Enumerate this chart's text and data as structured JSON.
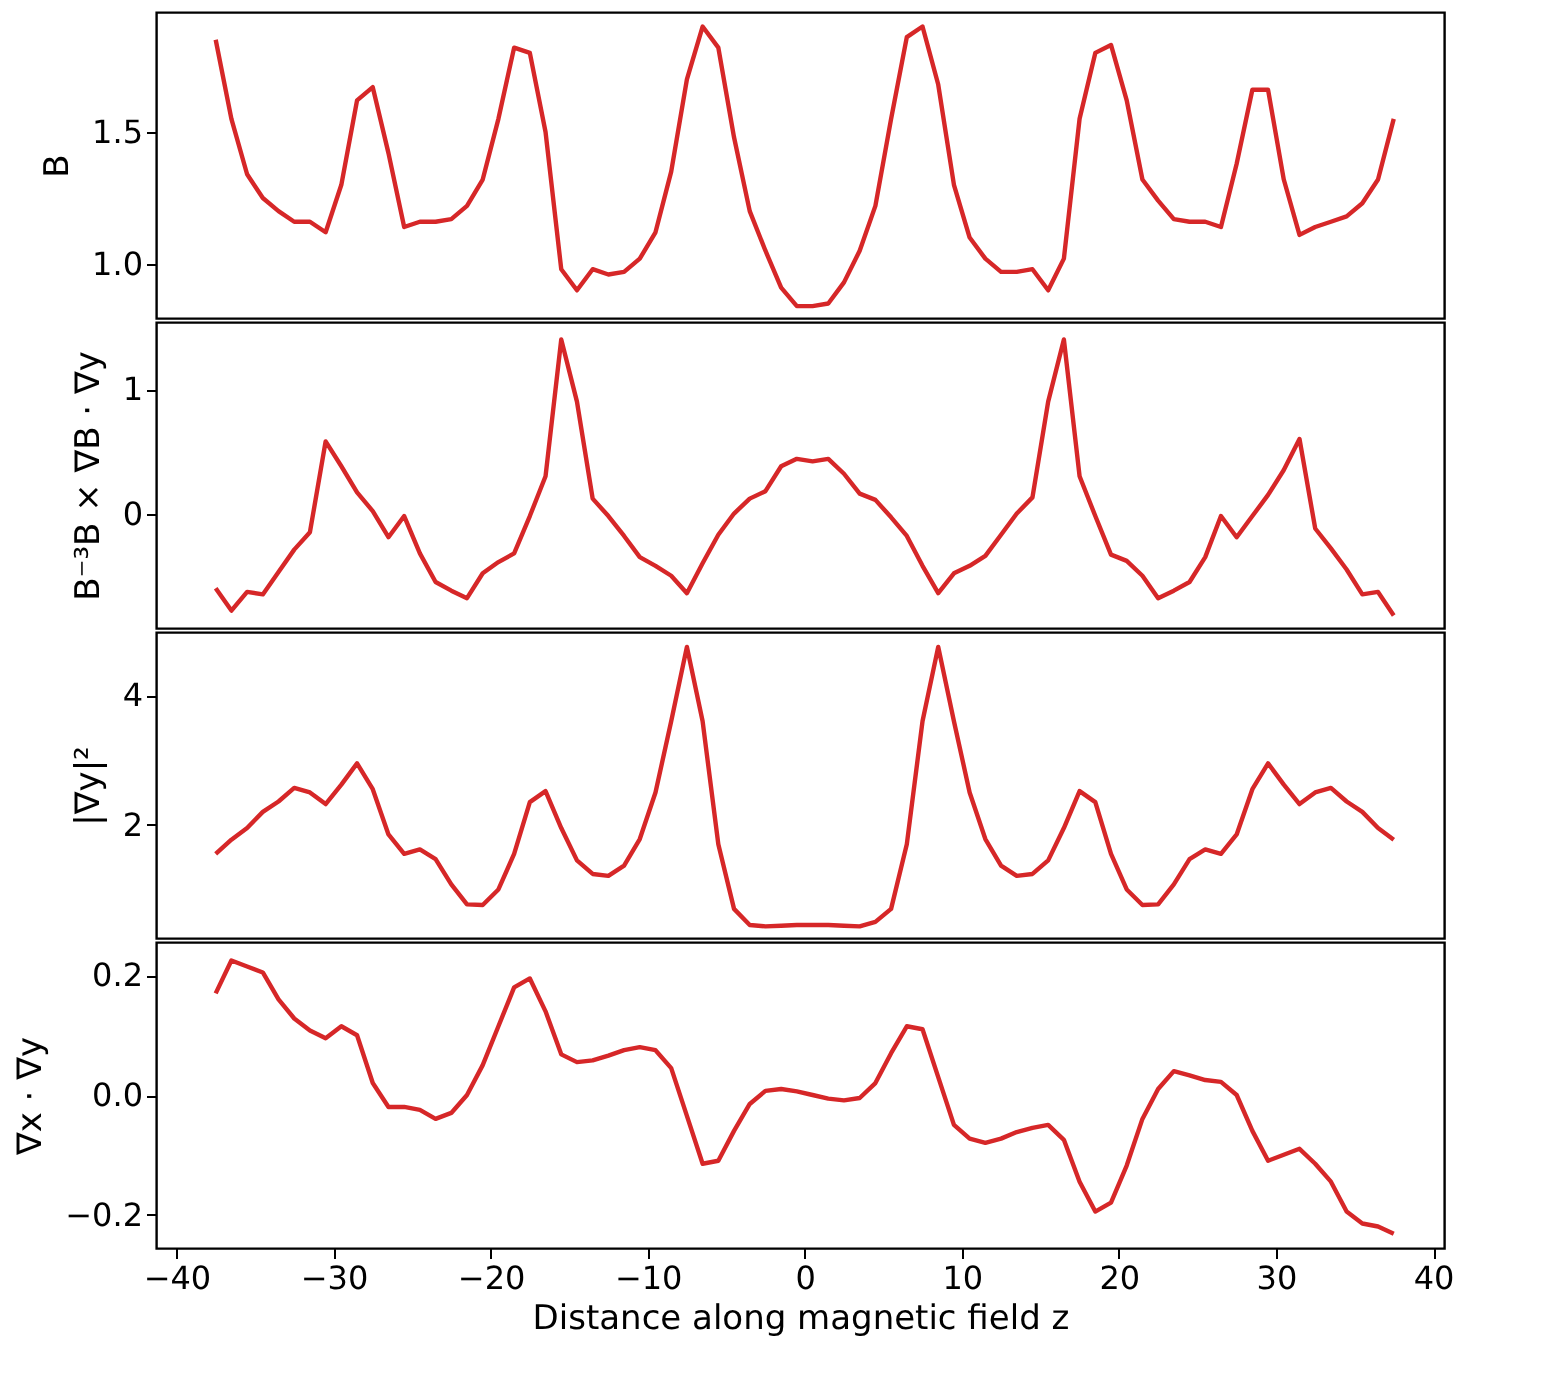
{
  "chart_data": [
    {
      "type": "line",
      "ylabel": "B",
      "tick_labels": "y",
      "x": [
        -37.5,
        -36.5,
        -35.5,
        -34.5,
        -33.5,
        -32.5,
        -31.5,
        -30.5,
        -29.5,
        -28.5,
        -27.5,
        -26.5,
        -25.5,
        -24.5,
        -23.5,
        -22.5,
        -21.5,
        -20.5,
        -19.5,
        -18.5,
        -17.5,
        -16.5,
        -15.5,
        -14.5,
        -13.5,
        -12.5,
        -11.5,
        -10.5,
        -9.5,
        -8.5,
        -7.5,
        -6.5,
        -5.5,
        -4.5,
        -3.5,
        -2.5,
        -1.5,
        -0.5,
        0.5,
        1.5,
        2.5,
        3.5,
        4.5,
        5.5,
        6.5,
        7.5,
        8.5,
        9.5,
        10.5,
        11.5,
        12.5,
        13.5,
        14.5,
        15.5,
        16.5,
        17.5,
        18.5,
        19.5,
        20.5,
        21.5,
        22.5,
        23.5,
        24.5,
        25.5,
        26.5,
        27.5,
        28.5,
        29.5,
        30.5,
        31.5,
        32.5,
        33.5,
        34.5,
        35.5,
        36.5,
        37.5
      ],
      "series": [
        {
          "color": "#d62728",
          "values": [
            1.85,
            1.55,
            1.34,
            1.25,
            1.2,
            1.16,
            1.16,
            1.12,
            1.3,
            1.62,
            1.67,
            1.42,
            1.14,
            1.16,
            1.16,
            1.17,
            1.22,
            1.32,
            1.55,
            1.82,
            1.8,
            1.5,
            0.98,
            0.9,
            0.98,
            0.96,
            0.97,
            1.02,
            1.12,
            1.35,
            1.7,
            1.9,
            1.82,
            1.48,
            1.2,
            1.05,
            0.91,
            0.84,
            0.84,
            0.85,
            0.93,
            1.05,
            1.22,
            1.55,
            1.86,
            1.9,
            1.68,
            1.3,
            1.1,
            1.02,
            0.97,
            0.97,
            0.98,
            0.9,
            1.02,
            1.55,
            1.8,
            1.83,
            1.62,
            1.32,
            1.24,
            1.17,
            1.16,
            1.16,
            1.14,
            1.38,
            1.66,
            1.66,
            1.32,
            1.11,
            1.14,
            1.16,
            1.18,
            1.23,
            1.32,
            1.55
          ]
        }
      ],
      "xlim": [
        -41.3,
        40.7
      ],
      "ylim": [
        0.795,
        1.955
      ],
      "yticks": [
        {
          "value": 1,
          "label": "1.0"
        },
        1.5
      ]
    },
    {
      "type": "line",
      "ylabel": "B⁻³B × ∇B · ∇y",
      "tick_labels": "y",
      "x": [
        -37.5,
        -36.5,
        -35.5,
        -34.5,
        -33.5,
        -32.5,
        -31.5,
        -30.5,
        -29.5,
        -28.5,
        -27.5,
        -26.5,
        -25.5,
        -24.5,
        -23.5,
        -22.5,
        -21.5,
        -20.5,
        -19.5,
        -18.5,
        -17.5,
        -16.5,
        -15.5,
        -14.5,
        -13.5,
        -12.5,
        -11.5,
        -10.5,
        -9.5,
        -8.5,
        -7.5,
        -6.5,
        -5.5,
        -4.5,
        -3.5,
        -2.5,
        -1.5,
        -0.5,
        0.5,
        1.5,
        2.5,
        3.5,
        4.5,
        5.5,
        6.5,
        7.5,
        8.5,
        9.5,
        10.5,
        11.5,
        12.5,
        13.5,
        14.5,
        15.5,
        16.5,
        17.5,
        18.5,
        19.5,
        20.5,
        21.5,
        22.5,
        23.5,
        24.5,
        25.5,
        26.5,
        27.5,
        28.5,
        29.5,
        30.5,
        31.5,
        32.5,
        33.5,
        34.5,
        35.5,
        36.5,
        37.5
      ],
      "series": [
        {
          "color": "#d62728",
          "values": [
            -0.6,
            -0.78,
            -0.63,
            -0.65,
            -0.47,
            -0.29,
            -0.15,
            0.58,
            0.38,
            0.17,
            0.02,
            -0.19,
            -0.02,
            -0.32,
            -0.55,
            -0.62,
            -0.68,
            -0.48,
            -0.39,
            -0.32,
            -0.02,
            0.3,
            1.4,
            0.9,
            0.12,
            -0.02,
            -0.18,
            -0.35,
            -0.42,
            -0.5,
            -0.64,
            -0.4,
            -0.17,
            0.0,
            0.12,
            0.18,
            0.38,
            0.44,
            0.42,
            0.44,
            0.32,
            0.16,
            0.11,
            -0.03,
            -0.18,
            -0.42,
            -0.64,
            -0.48,
            -0.42,
            -0.34,
            -0.17,
            0.0,
            0.13,
            0.9,
            1.4,
            0.3,
            -0.02,
            -0.33,
            -0.38,
            -0.5,
            -0.68,
            -0.62,
            -0.55,
            -0.35,
            -0.02,
            -0.19,
            -0.02,
            0.15,
            0.35,
            0.6,
            -0.12,
            -0.28,
            -0.45,
            -0.65,
            -0.63,
            -0.82
          ]
        }
      ],
      "xlim": [
        -41.3,
        40.7
      ],
      "ylim": [
        -0.92,
        1.54
      ],
      "yticks": [
        0,
        1
      ]
    },
    {
      "type": "line",
      "ylabel": "|∇y|²",
      "tick_labels": "y",
      "x": [
        -37.5,
        -36.5,
        -35.5,
        -34.5,
        -33.5,
        -32.5,
        -31.5,
        -30.5,
        -29.5,
        -28.5,
        -27.5,
        -26.5,
        -25.5,
        -24.5,
        -23.5,
        -22.5,
        -21.5,
        -20.5,
        -19.5,
        -18.5,
        -17.5,
        -16.5,
        -15.5,
        -14.5,
        -13.5,
        -12.5,
        -11.5,
        -10.5,
        -9.5,
        -8.5,
        -7.5,
        -6.5,
        -5.5,
        -4.5,
        -3.5,
        -2.5,
        -1.5,
        -0.5,
        0.5,
        1.5,
        2.5,
        3.5,
        4.5,
        5.5,
        6.5,
        7.5,
        8.5,
        9.5,
        10.5,
        11.5,
        12.5,
        13.5,
        14.5,
        15.5,
        16.5,
        17.5,
        18.5,
        19.5,
        20.5,
        21.5,
        22.5,
        23.5,
        24.5,
        25.5,
        26.5,
        27.5,
        28.5,
        29.5,
        30.5,
        31.5,
        32.5,
        33.5,
        34.5,
        35.5,
        36.5,
        37.5
      ],
      "series": [
        {
          "color": "#d62728",
          "values": [
            1.55,
            1.77,
            1.95,
            2.2,
            2.36,
            2.57,
            2.5,
            2.32,
            2.62,
            2.95,
            2.55,
            1.85,
            1.55,
            1.62,
            1.47,
            1.08,
            0.77,
            0.76,
            1.0,
            1.55,
            2.35,
            2.52,
            1.95,
            1.45,
            1.24,
            1.21,
            1.37,
            1.78,
            2.5,
            3.6,
            4.75,
            3.6,
            1.7,
            0.7,
            0.45,
            0.43,
            0.44,
            0.45,
            0.45,
            0.45,
            0.44,
            0.43,
            0.5,
            0.7,
            1.7,
            3.6,
            4.75,
            3.6,
            2.5,
            1.78,
            1.37,
            1.21,
            1.24,
            1.45,
            1.95,
            2.52,
            2.35,
            1.55,
            1.0,
            0.76,
            0.77,
            1.08,
            1.47,
            1.62,
            1.55,
            1.85,
            2.55,
            2.95,
            2.62,
            2.32,
            2.5,
            2.57,
            2.36,
            2.2,
            1.95,
            1.77
          ]
        }
      ],
      "xlim": [
        -41.3,
        40.7
      ],
      "ylim": [
        0.25,
        4.98
      ],
      "yticks": [
        2,
        4
      ]
    },
    {
      "type": "line",
      "ylabel": "∇x · ∇y",
      "xlabel": "Distance along magnetic field z",
      "x": [
        -37.5,
        -36.5,
        -35.5,
        -34.5,
        -33.5,
        -32.5,
        -31.5,
        -30.5,
        -29.5,
        -28.5,
        -27.5,
        -26.5,
        -25.5,
        -24.5,
        -23.5,
        -22.5,
        -21.5,
        -20.5,
        -19.5,
        -18.5,
        -17.5,
        -16.5,
        -15.5,
        -14.5,
        -13.5,
        -12.5,
        -11.5,
        -10.5,
        -9.5,
        -8.5,
        -7.5,
        -6.5,
        -5.5,
        -4.5,
        -3.5,
        -2.5,
        -1.5,
        -0.5,
        0.5,
        1.5,
        2.5,
        3.5,
        4.5,
        5.5,
        6.5,
        7.5,
        8.5,
        9.5,
        10.5,
        11.5,
        12.5,
        13.5,
        14.5,
        15.5,
        16.5,
        17.5,
        18.5,
        19.5,
        20.5,
        21.5,
        22.5,
        23.5,
        24.5,
        25.5,
        26.5,
        27.5,
        28.5,
        29.5,
        30.5,
        31.5,
        32.5,
        33.5,
        34.5,
        35.5,
        36.5,
        37.5
      ],
      "series": [
        {
          "color": "#d62728",
          "values": [
            0.17,
            0.225,
            0.215,
            0.205,
            0.16,
            0.128,
            0.108,
            0.095,
            0.115,
            0.1,
            0.02,
            -0.02,
            -0.02,
            -0.025,
            -0.04,
            -0.03,
            0.0,
            0.05,
            0.115,
            0.18,
            0.195,
            0.14,
            0.068,
            0.055,
            0.058,
            0.066,
            0.075,
            0.08,
            0.075,
            0.045,
            -0.035,
            -0.115,
            -0.11,
            -0.06,
            -0.015,
            0.007,
            0.01,
            0.006,
            0.0,
            -0.006,
            -0.009,
            -0.005,
            0.02,
            0.07,
            0.115,
            0.11,
            0.03,
            -0.05,
            -0.073,
            -0.08,
            -0.073,
            -0.062,
            -0.055,
            -0.05,
            -0.075,
            -0.145,
            -0.195,
            -0.18,
            -0.118,
            -0.04,
            0.01,
            0.04,
            0.033,
            0.025,
            0.022,
            0.0,
            -0.06,
            -0.11,
            -0.1,
            -0.09,
            -0.115,
            -0.145,
            -0.195,
            -0.215,
            -0.22,
            -0.232
          ]
        }
      ],
      "xlim": [
        -41.3,
        40.7
      ],
      "xticks": [
        {
          "value": -40,
          "label": "−40"
        },
        {
          "value": -30,
          "label": "−30"
        },
        {
          "value": -20,
          "label": "−20"
        },
        {
          "value": -10,
          "label": "−10"
        },
        0,
        10,
        20,
        30,
        40
      ],
      "ylim": [
        -0.256,
        0.256
      ],
      "yticks": [
        {
          "value": -0.2,
          "label": "−0.2"
        },
        {
          "value": 0,
          "label": "0.0"
        },
        0.2
      ]
    }
  ]
}
